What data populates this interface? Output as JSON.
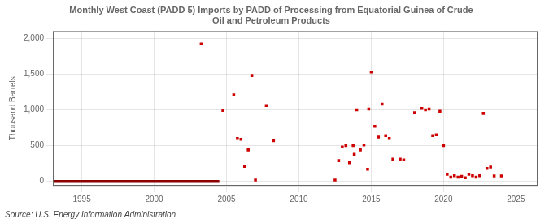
{
  "chart_data": {
    "type": "scatter",
    "title": "Monthly West Coast (PADD 5) Imports by PADD of Processing from Equatorial Guinea of Crude\nOil and Petroleum Products",
    "ylabel": "Thousand Barrels",
    "annotations": [
      "Source: U.S. Energy Information Administration"
    ],
    "series": [
      {
        "type": "scatter",
        "color": "#cc0000",
        "marker": "square",
        "x": [
          2003.25,
          2004.75,
          2005.5,
          2005.75,
          2006.0,
          2006.25,
          2006.5,
          2006.75,
          2007.0,
          2007.75,
          2008.25,
          2012.5,
          2012.75,
          2013.0,
          2013.25,
          2013.5,
          2013.75,
          2013.83,
          2014.0,
          2014.25,
          2014.5,
          2014.75,
          2014.83,
          2015.0,
          2015.25,
          2015.5,
          2015.75,
          2016.0,
          2016.25,
          2016.5,
          2017.0,
          2017.25,
          2018.0,
          2018.5,
          2018.75,
          2019.0,
          2019.25,
          2019.5,
          2019.75,
          2020.0,
          2020.25,
          2020.5,
          2020.75,
          2021.0,
          2021.25,
          2021.5,
          2021.75,
          2022.0,
          2022.25,
          2022.5,
          2022.75,
          2023.0,
          2023.25,
          2023.5,
          2024.0
        ],
        "values": [
          1920,
          990,
          1210,
          600,
          590,
          210,
          440,
          1480,
          20,
          1060,
          570,
          20,
          290,
          480,
          500,
          260,
          500,
          380,
          1000,
          440,
          510,
          170,
          1010,
          1530,
          770,
          620,
          1080,
          640,
          600,
          310,
          310,
          300,
          960,
          1020,
          1000,
          1010,
          640,
          650,
          980,
          500,
          100,
          60,
          80,
          60,
          70,
          50,
          100,
          80,
          60,
          80,
          950,
          180,
          200,
          75,
          75
        ]
      },
      {
        "type": "line",
        "color": "#8b0000",
        "line_style": "solid",
        "x": [
          1993.0,
          2004.5
        ],
        "values": [
          0,
          0
        ]
      }
    ],
    "xlim": [
      1993.0,
      2026.5
    ],
    "ylim": [
      -60,
      2100
    ],
    "xticks": [
      1995,
      2000,
      2005,
      2010,
      2015,
      2020,
      2025
    ],
    "yticks": [
      0,
      500,
      {
        "value": 1000,
        "label": "1,000"
      },
      {
        "value": 1500,
        "label": "1,500"
      },
      {
        "value": 2000,
        "label": "2,000"
      }
    ],
    "grid": true
  }
}
